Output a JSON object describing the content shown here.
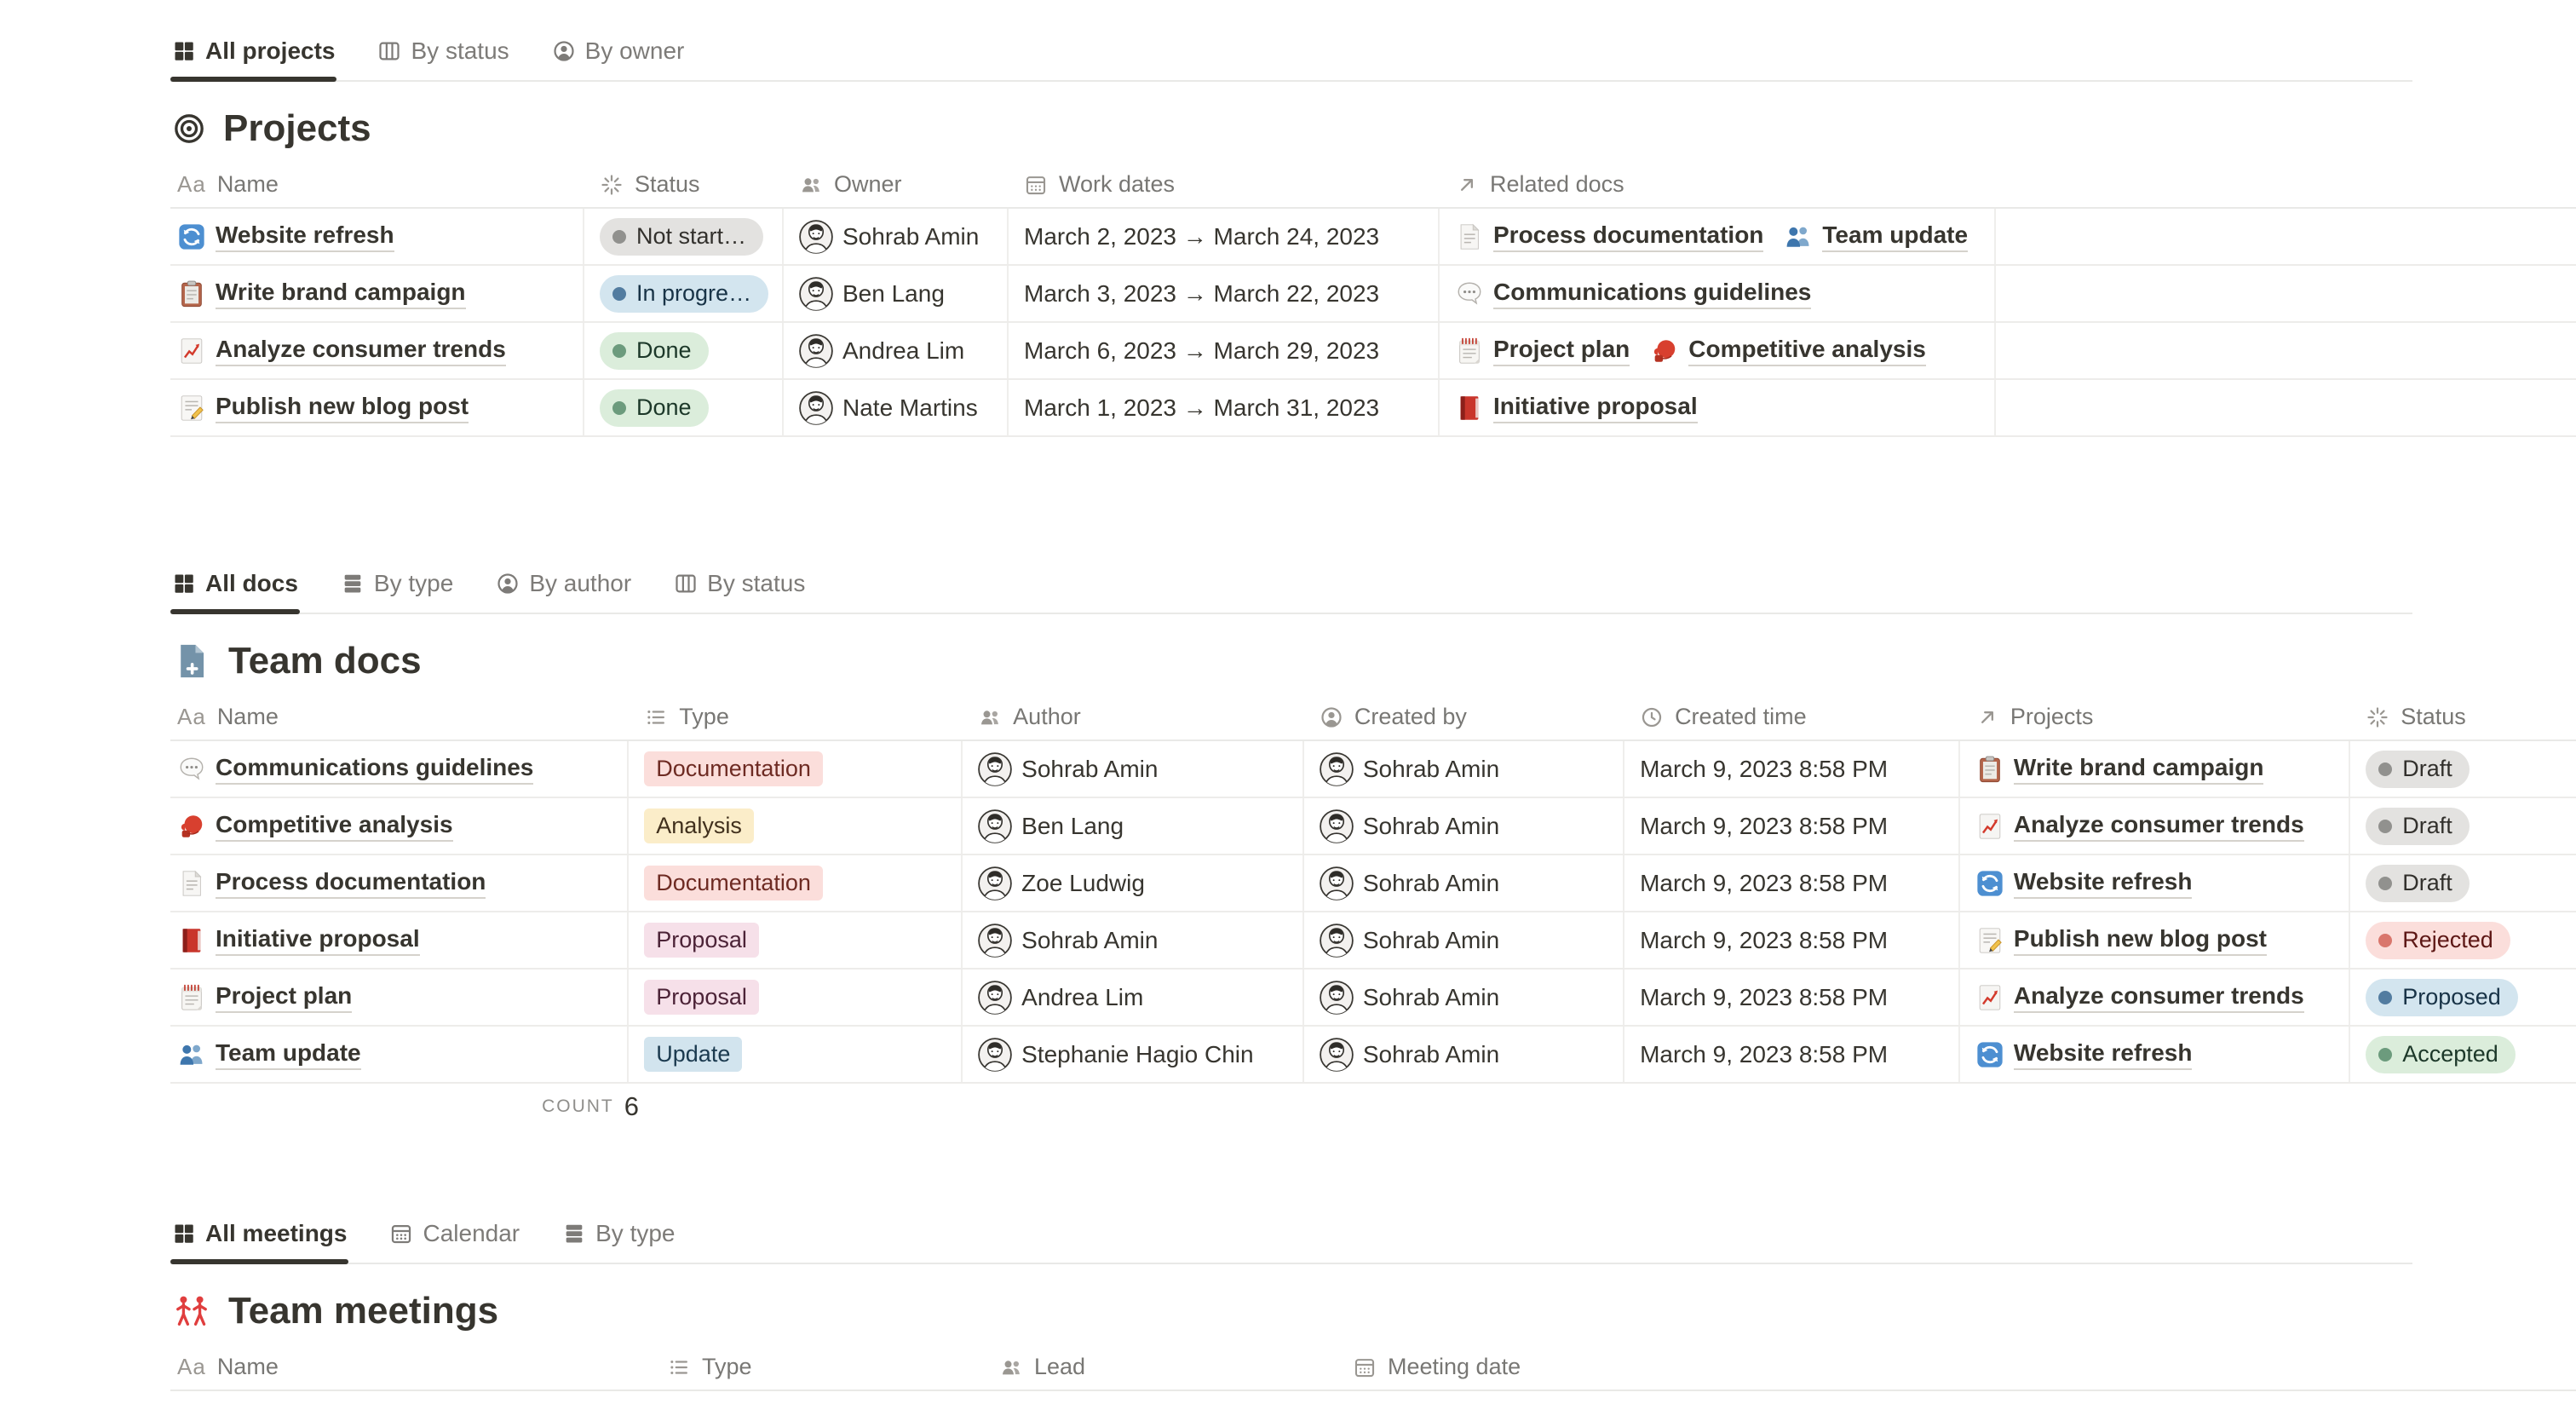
{
  "colors": {
    "text": "#37352F",
    "header_text": "#787774",
    "divider": "#E9E9E7",
    "active_tab_underline": "#37352F",
    "pill_gray_bg": "#E3E2E0",
    "pill_blue_bg": "#D3E5EF",
    "pill_green_bg": "#DBEDDB",
    "pill_red_bg": "#FBDEDB",
    "dot_gray": "#91918E",
    "dot_blue": "#527CA0",
    "dot_green": "#6C9B7D",
    "dot_red": "#D9766C",
    "tag_documentation_bg": "#FBDEDB",
    "tag_analysis_bg": "#FBEDC9",
    "tag_proposal_bg": "#F6E0E9",
    "tag_update_bg": "#D2E4EE",
    "meetings_icon_red": "#E03E3E",
    "docs_icon_blue": "#7493A9"
  },
  "sections": {
    "projects": {
      "tabs": [
        {
          "label": "All projects",
          "icon": "grid-view-icon",
          "active": true
        },
        {
          "label": "By status",
          "icon": "board-view-icon",
          "active": false
        },
        {
          "label": "By owner",
          "icon": "person-circle-icon",
          "active": false
        }
      ],
      "title": "Projects",
      "title_icon": "target-icon",
      "columns": [
        {
          "label": "Name",
          "icon": "text-icon"
        },
        {
          "label": "Status",
          "icon": "status-burst-icon"
        },
        {
          "label": "Owner",
          "icon": "people-icon"
        },
        {
          "label": "Work dates",
          "icon": "calendar-icon"
        },
        {
          "label": "Related docs",
          "icon": "arrow-up-right-icon"
        }
      ],
      "rows": [
        {
          "name": {
            "icon": "refresh-icon",
            "label": "Website refresh"
          },
          "status": {
            "label": "Not start…",
            "tone": "gray"
          },
          "owner": {
            "name": "Sohrab Amin"
          },
          "dates": "March 2, 2023 → March 24, 2023",
          "related": [
            {
              "icon": "page-icon",
              "label": "Process documentation"
            },
            {
              "icon": "busts-icon",
              "label": "Team update"
            }
          ]
        },
        {
          "name": {
            "icon": "clipboard-icon",
            "label": "Write brand campaign"
          },
          "status": {
            "label": "In progre…",
            "tone": "blue"
          },
          "owner": {
            "name": "Ben Lang"
          },
          "dates": "March 3, 2023 → March 22, 2023",
          "related": [
            {
              "icon": "speech-icon",
              "label": "Communications guidelines"
            }
          ]
        },
        {
          "name": {
            "icon": "chart-icon",
            "label": "Analyze consumer trends"
          },
          "status": {
            "label": "Done",
            "tone": "green"
          },
          "owner": {
            "name": "Andrea Lim"
          },
          "dates": "March 6, 2023 → March 29, 2023",
          "related": [
            {
              "icon": "notepad-icon",
              "label": "Project plan"
            },
            {
              "icon": "boxing-icon",
              "label": "Competitive analysis"
            }
          ]
        },
        {
          "name": {
            "icon": "memo-icon",
            "label": "Publish new blog post"
          },
          "status": {
            "label": "Done",
            "tone": "green"
          },
          "owner": {
            "name": "Nate Martins"
          },
          "dates": "March 1, 2023 → March 31, 2023",
          "related": [
            {
              "icon": "book-icon",
              "label": "Initiative proposal"
            }
          ]
        }
      ]
    },
    "docs": {
      "tabs": [
        {
          "label": "All docs",
          "icon": "grid-view-icon",
          "active": true
        },
        {
          "label": "By type",
          "icon": "list-view-icon",
          "active": false
        },
        {
          "label": "By author",
          "icon": "person-circle-icon",
          "active": false
        },
        {
          "label": "By status",
          "icon": "board-view-icon",
          "active": false
        }
      ],
      "title": "Team docs",
      "title_icon": "doc-add-icon",
      "columns": [
        {
          "label": "Name",
          "icon": "text-icon"
        },
        {
          "label": "Type",
          "icon": "list-type-icon"
        },
        {
          "label": "Author",
          "icon": "people-icon"
        },
        {
          "label": "Created by",
          "icon": "person-circle-icon"
        },
        {
          "label": "Created time",
          "icon": "clock-icon"
        },
        {
          "label": "Projects",
          "icon": "arrow-up-right-icon"
        },
        {
          "label": "Status",
          "icon": "status-burst-icon"
        }
      ],
      "rows": [
        {
          "name": {
            "icon": "speech-icon",
            "label": "Communications guidelines"
          },
          "type": {
            "label": "Documentation",
            "tone": "red"
          },
          "author": {
            "name": "Sohrab Amin"
          },
          "created_by": {
            "name": "Sohrab Amin"
          },
          "created_time": "March 9, 2023 8:58 PM",
          "project": {
            "icon": "clipboard-icon",
            "label": "Write brand campaign"
          },
          "status": {
            "label": "Draft",
            "tone": "gray"
          }
        },
        {
          "name": {
            "icon": "boxing-icon",
            "label": "Competitive analysis"
          },
          "type": {
            "label": "Analysis",
            "tone": "yellow"
          },
          "author": {
            "name": "Ben Lang"
          },
          "created_by": {
            "name": "Sohrab Amin"
          },
          "created_time": "March 9, 2023 8:58 PM",
          "project": {
            "icon": "chart-icon",
            "label": "Analyze consumer trends"
          },
          "status": {
            "label": "Draft",
            "tone": "gray"
          }
        },
        {
          "name": {
            "icon": "page-icon",
            "label": "Process documentation"
          },
          "type": {
            "label": "Documentation",
            "tone": "red"
          },
          "author": {
            "name": "Zoe Ludwig"
          },
          "created_by": {
            "name": "Sohrab Amin"
          },
          "created_time": "March 9, 2023 8:58 PM",
          "project": {
            "icon": "refresh-icon",
            "label": "Website refresh"
          },
          "status": {
            "label": "Draft",
            "tone": "gray"
          }
        },
        {
          "name": {
            "icon": "book-icon",
            "label": "Initiative proposal"
          },
          "type": {
            "label": "Proposal",
            "tone": "pink"
          },
          "author": {
            "name": "Sohrab Amin"
          },
          "created_by": {
            "name": "Sohrab Amin"
          },
          "created_time": "March 9, 2023 8:58 PM",
          "project": {
            "icon": "memo-icon",
            "label": "Publish new blog post"
          },
          "status": {
            "label": "Rejected",
            "tone": "red"
          }
        },
        {
          "name": {
            "icon": "notepad-icon",
            "label": "Project plan"
          },
          "type": {
            "label": "Proposal",
            "tone": "pink"
          },
          "author": {
            "name": "Andrea Lim"
          },
          "created_by": {
            "name": "Sohrab Amin"
          },
          "created_time": "March 9, 2023 8:58 PM",
          "project": {
            "icon": "chart-icon",
            "label": "Analyze consumer trends"
          },
          "status": {
            "label": "Proposed",
            "tone": "blue"
          }
        },
        {
          "name": {
            "icon": "busts-icon",
            "label": "Team update"
          },
          "type": {
            "label": "Update",
            "tone": "blue"
          },
          "author": {
            "name": "Stephanie Hagio Chin"
          },
          "created_by": {
            "name": "Sohrab Amin"
          },
          "created_time": "March 9, 2023 8:58 PM",
          "project": {
            "icon": "refresh-icon",
            "label": "Website refresh"
          },
          "status": {
            "label": "Accepted",
            "tone": "green"
          }
        }
      ],
      "footer": {
        "label": "COUNT",
        "value": "6"
      }
    },
    "meetings": {
      "tabs": [
        {
          "label": "All meetings",
          "icon": "grid-view-icon",
          "active": true
        },
        {
          "label": "Calendar",
          "icon": "calendar-view-icon",
          "active": false
        },
        {
          "label": "By type",
          "icon": "list-view-icon",
          "active": false
        }
      ],
      "title": "Team meetings",
      "title_icon": "people-red-icon",
      "columns": [
        {
          "label": "Name",
          "icon": "text-icon"
        },
        {
          "label": "Type",
          "icon": "list-type-icon"
        },
        {
          "label": "Lead",
          "icon": "people-icon"
        },
        {
          "label": "Meeting date",
          "icon": "calendar-icon"
        }
      ],
      "rows": []
    }
  }
}
